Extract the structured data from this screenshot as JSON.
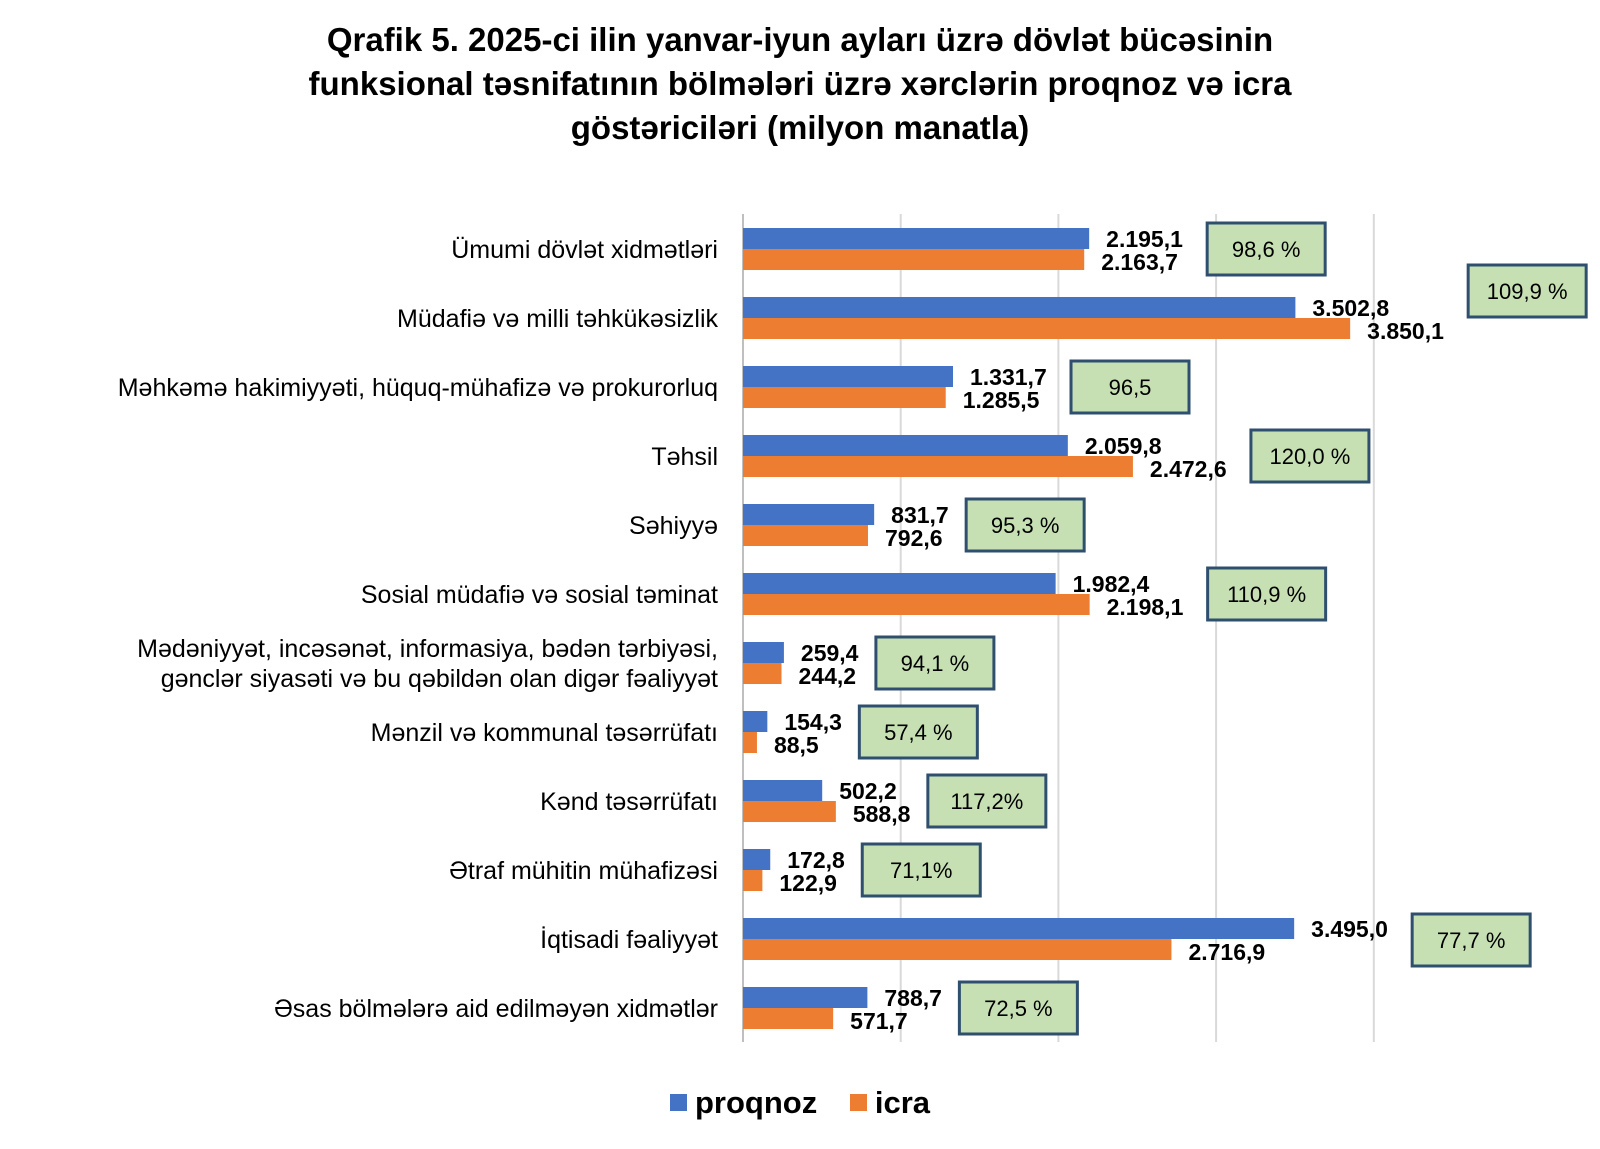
{
  "chart_data": {
    "type": "bar",
    "orientation": "horizontal",
    "title_lines": [
      "Qrafik 5. 2025-ci ilin yanvar-iyun ayları üzrə dövlət bücəsinin",
      "funksional təsnifatının bölmələri üzrə xərclərin proqnoz və icra",
      "göstəriciləri (milyon manatla)"
    ],
    "categories": [
      [
        "Ümumi dövlət xidmətləri"
      ],
      [
        "Müdafiə və milli təhkükəsizlik"
      ],
      [
        "Məhkəmə hakimiyyəti, hüquq-mühafizə və prokurorluq"
      ],
      [
        "Təhsil"
      ],
      [
        "Səhiyyə"
      ],
      [
        "Sosial müdafiə və sosial təminat"
      ],
      [
        "Mədəniyyət, incəsənət, informasiya, bədən tərbiyəsi,",
        "gənclər siyasəti və bu qəbildən olan digər fəaliyyət"
      ],
      [
        "Mənzil və kommunal təsərrüfatı"
      ],
      [
        "Kənd təsərrüfatı"
      ],
      [
        "Ətraf mühitin mühafizəsi"
      ],
      [
        "İqtisadi fəaliyyət"
      ],
      [
        "Əsas bölmələrə aid edilməyən xidmətlər"
      ]
    ],
    "series": [
      {
        "name": "proqnoz",
        "color": "#4472C4",
        "values": [
          2195.1,
          3502.8,
          1331.7,
          2059.8,
          831.7,
          1982.4,
          259.4,
          154.3,
          502.2,
          172.8,
          3495.0,
          788.7
        ],
        "labels": [
          "2.195,1",
          "3.502,8",
          "1.331,7",
          "2.059,8",
          "831,7",
          "1.982,4",
          "259,4",
          "154,3",
          "502,2",
          "172,8",
          "3.495,0",
          "788,7"
        ]
      },
      {
        "name": "icra",
        "color": "#ED7D31",
        "values": [
          2163.7,
          3850.1,
          1285.5,
          2472.6,
          792.6,
          2198.1,
          244.2,
          88.5,
          588.8,
          122.9,
          2716.9,
          571.7
        ],
        "labels": [
          "2.163,7",
          "3.850,1",
          "1.285,5",
          "2.472,6",
          "792,6",
          "2.198,1",
          "244,2",
          "88,5",
          "588,8",
          "122,9",
          "2.716,9",
          "571,7"
        ]
      }
    ],
    "percent_labels": [
      "98,6 %",
      "109,9 %",
      "96,5",
      "120,0 %",
      "95,3 %",
      "110,9 %",
      "94,1 %",
      "57,4 %",
      "117,2%",
      "71,1%",
      "77,7 %",
      "72,5 %"
    ],
    "percent_box_color": "#C6E0B4",
    "percent_box_border": "#2F4F6F",
    "xlim": [
      0,
      4500
    ],
    "grid": "vertical",
    "legend_position": "bottom"
  }
}
